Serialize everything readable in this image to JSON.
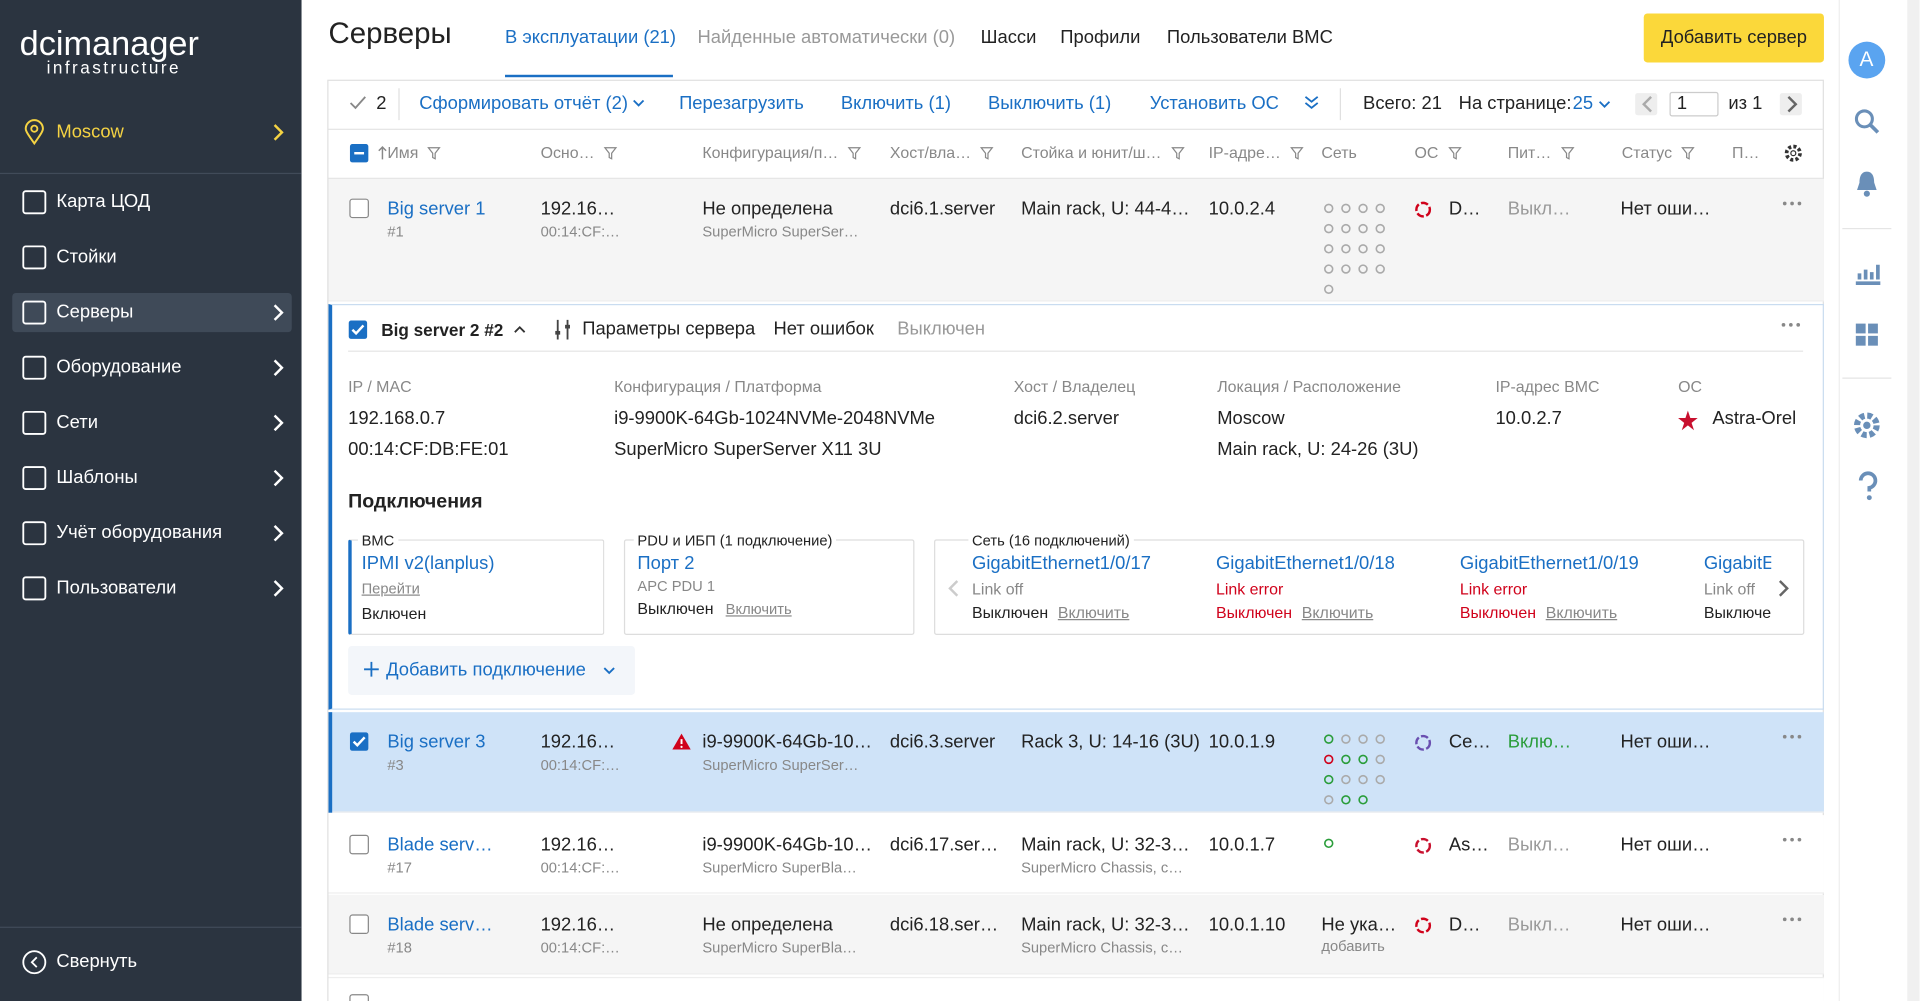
{
  "sidebar": {
    "logo_top": "dcimanager",
    "logo_bottom": "infrastructure",
    "location": "Moscow",
    "menu": [
      "Карта ЦОД",
      "Стойки",
      "Серверы",
      "Оборудование",
      "Сети",
      "Шаблоны",
      "Учёт оборудования",
      "Пользователи"
    ],
    "collapse": "Свернуть"
  },
  "header": {
    "title": "Серверы",
    "tabs": [
      "В эксплуатации (21)",
      "Найденные автоматически (0)",
      "Шасси",
      "Профили",
      "Пользователи BMC"
    ],
    "add_button": "Добавить сервер",
    "avatar": "A"
  },
  "toolbar": {
    "selected": "2",
    "actions": [
      "Сформировать отчёт (2)",
      "Перезагрузить",
      "Включить (1)",
      "Выключить (1)",
      "Установить ОС"
    ],
    "total": "Всего: 21",
    "per_page_label": "На странице:",
    "per_page": "25",
    "page": "1",
    "of": "из 1"
  },
  "table": {
    "columns": [
      "Имя",
      "Осно…",
      "Конфигурация/п…",
      "Хост/вла…",
      "Стойка и юнит/ш…",
      "IP-адре…",
      "Сеть",
      "ОС",
      "Пит…",
      "Статус",
      "П…"
    ],
    "rows": [
      {
        "name": "Big server 1",
        "id": "#1",
        "ip": "192.16…",
        "mac": "00:14:CF:…",
        "config": "Не определена",
        "platform": "SuperMicro SuperSer…",
        "host": "dci6.1.server",
        "rack": "Main rack, U: 44-4…",
        "bmc_ip": "10.0.2.4",
        "os": "D…",
        "os_color": "#d0021b",
        "power": "Выкл…",
        "power_color": "#999",
        "status": "Нет оши…"
      },
      {
        "name": "Big server 3",
        "id": "#3",
        "ip": "192.16…",
        "mac": "00:14:CF:…",
        "warning": true,
        "config": "i9-9900K-64Gb-10…",
        "platform": "SuperMicro SuperSer…",
        "host": "dci6.3.server",
        "rack": "Rack 3, U: 14-16 (3U)",
        "bmc_ip": "10.0.1.9",
        "os": "Се…",
        "os_color": "#6a4fb0",
        "power": "Вклю…",
        "power_color": "#2a9d3a",
        "status": "Нет оши…",
        "checked": true
      },
      {
        "name": "Blade serv…",
        "id": "#17",
        "ip": "192.16…",
        "mac": "00:14:CF:…",
        "config": "i9-9900K-64Gb-10…",
        "platform": "SuperMicro SuperBla…",
        "host": "dci6.17.ser…",
        "rack": "Main rack, U: 32-3…",
        "rack_sub": "SuperMicro Chassis, c…",
        "bmc_ip": "10.0.1.7",
        "os": "As…",
        "os_color": "#c8102e",
        "power": "Выкл…",
        "power_color": "#999",
        "status": "Нет оши…"
      },
      {
        "name": "Blade serv…",
        "id": "#18",
        "ip": "192.16…",
        "mac": "00:14:CF:…",
        "config": "Не определена",
        "platform": "SuperMicro SuperBla…",
        "host": "dci6.18.ser…",
        "rack": "Main rack, U: 32-3…",
        "rack_sub": "SuperMicro Chassis, c…",
        "bmc_ip": "10.0.1.10",
        "net": "Не ука…",
        "net_sub": "добавить",
        "os": "D…",
        "os_color": "#d0021b",
        "power": "Выкл…",
        "power_color": "#999",
        "status": "Нет оши…"
      }
    ]
  },
  "expanded": {
    "name": "Big server 2 #2",
    "params": "Параметры сервера",
    "status": "Нет ошибок",
    "power": "Выключен",
    "fields": [
      {
        "label": "IP / MAC",
        "values": [
          "192.168.0.7",
          "00:14:CF:DB:FE:01"
        ]
      },
      {
        "label": "Конфигурация / Платформа",
        "values": [
          "i9-9900K-64Gb-1024NVMe-2048NVMe",
          "SuperMicro SuperServer X11 3U"
        ]
      },
      {
        "label": "Хост / Владелец",
        "values": [
          "dci6.2.server"
        ]
      },
      {
        "label": "Локация / Расположение",
        "values": [
          "Moscow",
          "Main rack, U: 24-26 (3U)"
        ]
      },
      {
        "label": "IP-адрес BMC",
        "values": [
          "10.0.2.7"
        ]
      },
      {
        "label": "ОС",
        "values": [
          "Astra-Orel"
        ]
      }
    ],
    "connections_title": "Подключения",
    "bmc": {
      "title": "BMC",
      "link": "IPMI v2(lanplus)",
      "action": "Перейти",
      "state": "Включен"
    },
    "pdu": {
      "title": "PDU и ИБП (1 подключение)",
      "link": "Порт 2",
      "device": "APC PDU 1",
      "state": "Выключен",
      "action": "Включить"
    },
    "network": {
      "title": "Сеть (16 подключений)",
      "ports": [
        {
          "name": "GigabitEthernet1/0/17",
          "link": "Link off",
          "state": "Выключен",
          "action": "Включить"
        },
        {
          "name": "GigabitEthernet1/0/18",
          "link": "Link error",
          "state": "Выключен",
          "action": "Включить"
        },
        {
          "name": "GigabitEthernet1/0/19",
          "link": "Link error",
          "state": "Выключен",
          "action": "Включить"
        },
        {
          "name": "GigabitE",
          "link": "Link off",
          "state": "Выключе"
        }
      ]
    },
    "add_connection": "Добавить подключение"
  }
}
